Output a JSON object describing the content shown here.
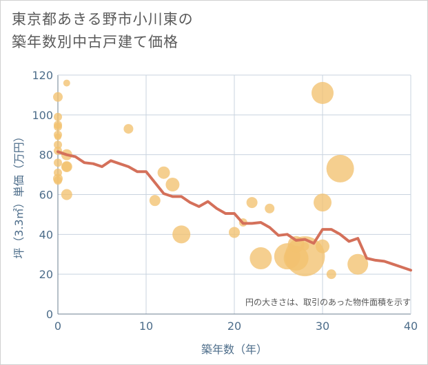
{
  "chart_data": {
    "type": "scatter",
    "title_lines": [
      "東京都あきる野市小川東の",
      "築年数別中古戸建て価格"
    ],
    "xlabel": "築年数（年）",
    "ylabel": "坪（3.3㎡）単価（万円）",
    "note": "円の大きさは、取引のあった物件面積を示す",
    "xlim": [
      0,
      40
    ],
    "ylim": [
      0,
      120
    ],
    "xticks": [
      0,
      10,
      20,
      30,
      40
    ],
    "yticks": [
      0,
      20,
      40,
      60,
      80,
      100,
      120
    ],
    "grid": true,
    "colors": {
      "bubble": "#f2c16f",
      "line": "#d4705a",
      "axis_text": "#4d6d8a",
      "grid": "#c8d3df"
    },
    "bubbles": [
      {
        "x": 0,
        "y": 109,
        "size": 7
      },
      {
        "x": 0,
        "y": 99,
        "size": 6
      },
      {
        "x": 0,
        "y": 95,
        "size": 6
      },
      {
        "x": 0,
        "y": 94,
        "size": 6
      },
      {
        "x": 0,
        "y": 90,
        "size": 6
      },
      {
        "x": 0,
        "y": 89,
        "size": 5
      },
      {
        "x": 0,
        "y": 85,
        "size": 6
      },
      {
        "x": 0,
        "y": 82,
        "size": 6
      },
      {
        "x": 0,
        "y": 76,
        "size": 6
      },
      {
        "x": 0,
        "y": 71,
        "size": 6
      },
      {
        "x": 0,
        "y": 68,
        "size": 7
      },
      {
        "x": 0,
        "y": 67,
        "size": 6
      },
      {
        "x": 1,
        "y": 116,
        "size": 5
      },
      {
        "x": 1,
        "y": 80,
        "size": 8
      },
      {
        "x": 1,
        "y": 74,
        "size": 8
      },
      {
        "x": 1,
        "y": 74,
        "size": 7
      },
      {
        "x": 1,
        "y": 60,
        "size": 8
      },
      {
        "x": 8,
        "y": 93,
        "size": 7
      },
      {
        "x": 11,
        "y": 57,
        "size": 8
      },
      {
        "x": 12,
        "y": 71,
        "size": 9
      },
      {
        "x": 13,
        "y": 65,
        "size": 10
      },
      {
        "x": 14,
        "y": 40,
        "size": 13
      },
      {
        "x": 20,
        "y": 41,
        "size": 8
      },
      {
        "x": 21,
        "y": 46,
        "size": 6
      },
      {
        "x": 22,
        "y": 56,
        "size": 8
      },
      {
        "x": 23,
        "y": 28,
        "size": 16
      },
      {
        "x": 24,
        "y": 53,
        "size": 7
      },
      {
        "x": 26,
        "y": 29,
        "size": 19
      },
      {
        "x": 27,
        "y": 35,
        "size": 12
      },
      {
        "x": 27,
        "y": 28,
        "size": 18
      },
      {
        "x": 28,
        "y": 29,
        "size": 29
      },
      {
        "x": 28,
        "y": 34,
        "size": 6
      },
      {
        "x": 30,
        "y": 111,
        "size": 16
      },
      {
        "x": 30,
        "y": 56,
        "size": 13
      },
      {
        "x": 30,
        "y": 34,
        "size": 10
      },
      {
        "x": 31,
        "y": 20,
        "size": 7
      },
      {
        "x": 32,
        "y": 73,
        "size": 20
      },
      {
        "x": 34,
        "y": 25,
        "size": 15
      }
    ],
    "trend": {
      "x": [
        0,
        1,
        2,
        3,
        4,
        5,
        6,
        7,
        8,
        9,
        10,
        11,
        12,
        13,
        14,
        15,
        16,
        17,
        18,
        19,
        20,
        21,
        22,
        23,
        24,
        25,
        26,
        27,
        28,
        29,
        30,
        31,
        32,
        33,
        34,
        35,
        36,
        37,
        38,
        39,
        40
      ],
      "y": [
        81.5,
        80,
        79,
        76,
        75.5,
        74,
        77,
        75.5,
        74,
        71.5,
        71.5,
        66,
        60.5,
        59,
        59,
        56,
        54,
        56.5,
        53,
        50.5,
        50.5,
        45.5,
        45.5,
        46,
        43.5,
        39.5,
        40,
        37,
        37.5,
        35.5,
        42.5,
        42.5,
        40,
        36.5,
        38,
        28,
        27,
        26.5,
        25,
        23.5,
        22
      ]
    }
  }
}
